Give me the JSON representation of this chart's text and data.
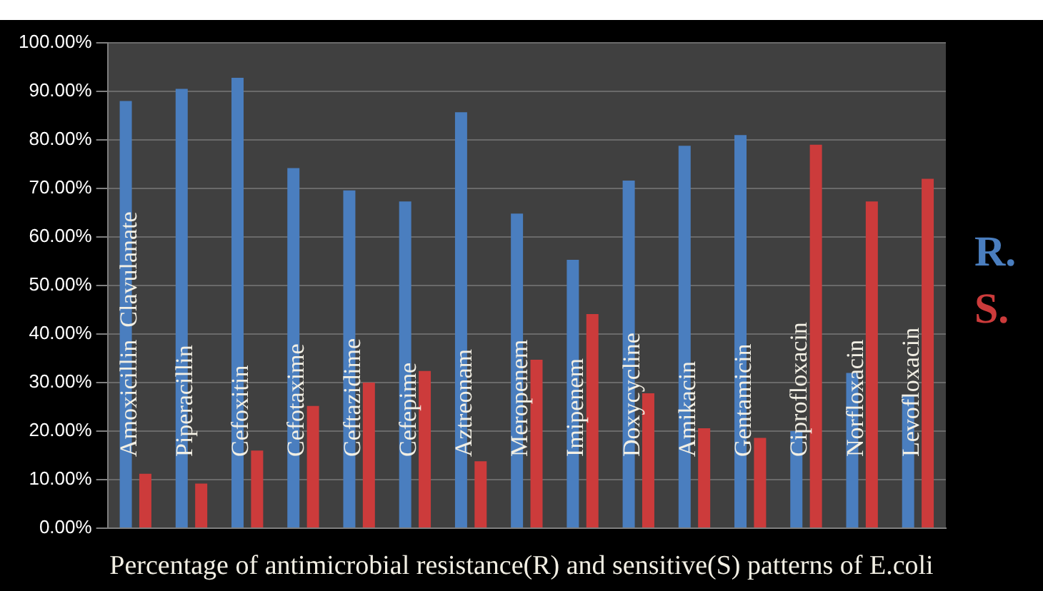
{
  "chart_data": {
    "type": "bar",
    "title": "Percentage of antimicrobial resistance(R) and sensitive(S) patterns of E.coli",
    "categories": [
      "Amoxicillin  Clavulanate",
      "Piperacillin",
      "Cefoxitin",
      "Cefotaxime",
      "Ceftazidime",
      "Cefepime",
      "Aztreonam",
      "Meropenem",
      "Imipenem",
      "Doxycycline",
      "Amikacin",
      "Gentamicin",
      "Ciprofloxacin",
      "Norfloxacin",
      "Levofloxacin"
    ],
    "series": [
      {
        "name": "R.",
        "color": "#4a7ebf",
        "values": [
          88,
          90.5,
          92.8,
          74.2,
          69.6,
          67.3,
          85.7,
          64.8,
          55.3,
          71.6,
          78.8,
          81,
          20,
          32,
          27.5
        ]
      },
      {
        "name": "S.",
        "color": "#cc3b3b",
        "values": [
          11.2,
          9.2,
          16,
          25.2,
          30,
          32.4,
          13.8,
          34.7,
          44.1,
          27.8,
          20.6,
          18.6,
          79,
          67.3,
          72
        ]
      }
    ],
    "ylim": [
      0,
      100
    ],
    "yticks": [
      {
        "value": 0,
        "label": "0.00%"
      },
      {
        "value": 10,
        "label": "10.00%"
      },
      {
        "value": 20,
        "label": "20.00%"
      },
      {
        "value": 30,
        "label": "30.00%"
      },
      {
        "value": 40,
        "label": "40.00%"
      },
      {
        "value": 50,
        "label": "50.00%"
      },
      {
        "value": 60,
        "label": "60.00%"
      },
      {
        "value": 70,
        "label": "70.00%"
      },
      {
        "value": 80,
        "label": "80.00%"
      },
      {
        "value": 90,
        "label": "90.00%"
      },
      {
        "value": 100,
        "label": "100.00%"
      }
    ],
    "grid": "y",
    "legend": "right"
  }
}
